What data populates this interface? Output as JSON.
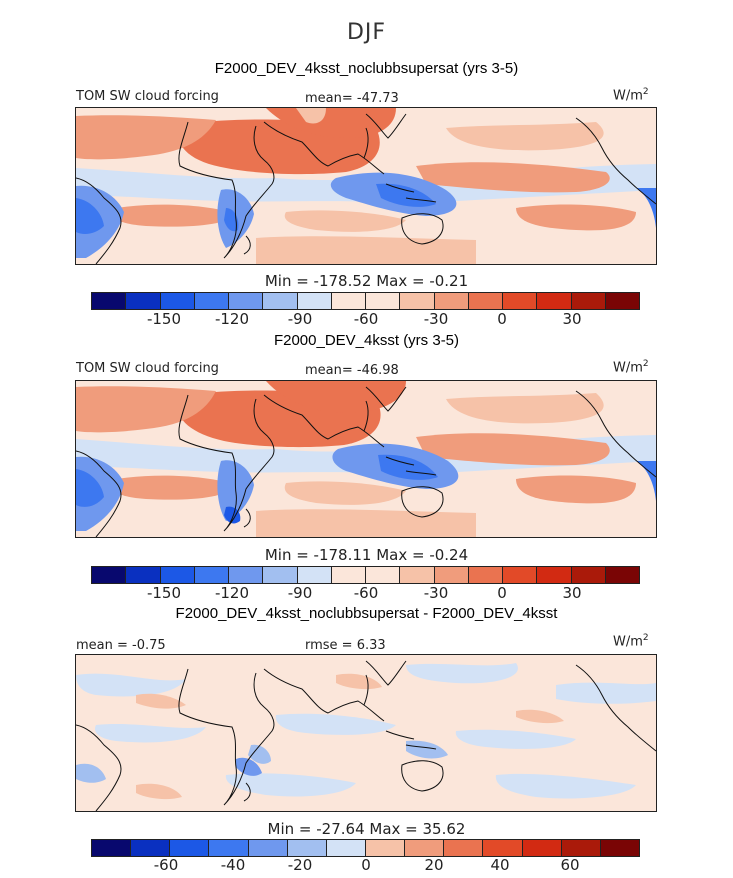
{
  "figure": {
    "season": "DJF"
  },
  "colors": [
    "#08086e",
    "#0a30c0",
    "#1c58e6",
    "#3d78f0",
    "#6f98ee",
    "#a2bff0",
    "#d3e2f6",
    "#fbe6da",
    "#f6c2a8",
    "#f09c7c",
    "#ea7350",
    "#e24a28",
    "#d22a12",
    "#aa1a0a",
    "#7a0505"
  ],
  "chart_data": [
    {
      "type": "heatmap",
      "title": "F2000_DEV_4ksst_noclubbsupersat (yrs 3-5)",
      "left_label": "TOM SW cloud forcing",
      "center_label": "mean= -47.73",
      "units_base": "W/m",
      "units_exp": "2",
      "min_max": "Min = -178.52 Max =  -0.21",
      "colorbar_ticks": [
        "-150",
        "-120",
        "-90",
        "-60",
        "-30",
        "0",
        "30"
      ],
      "colorbar_levels": [
        -180,
        -165,
        -150,
        -135,
        -120,
        -105,
        -90,
        -75,
        -60,
        -45,
        -30,
        -15,
        0,
        15,
        30,
        45
      ]
    },
    {
      "type": "heatmap",
      "title": "F2000_DEV_4ksst (yrs 3-5)",
      "left_label": "TOM SW cloud forcing",
      "center_label": "mean= -46.98",
      "units_base": "W/m",
      "units_exp": "2",
      "min_max": "Min = -178.11 Max =  -0.24",
      "colorbar_ticks": [
        "-150",
        "-120",
        "-90",
        "-60",
        "-30",
        "0",
        "30"
      ],
      "colorbar_levels": [
        -180,
        -165,
        -150,
        -135,
        -120,
        -105,
        -90,
        -75,
        -60,
        -45,
        -30,
        -15,
        0,
        15,
        30,
        45
      ]
    },
    {
      "type": "heatmap",
      "title": "F2000_DEV_4ksst_noclubbsupersat - F2000_DEV_4ksst",
      "left_label": "mean =   -0.75",
      "center_label": "rmse =   6.33",
      "units_base": "W/m",
      "units_exp": "2",
      "min_max": "Min = -27.64 Max =  35.62",
      "colorbar_ticks": [
        "-60",
        "-40",
        "-20",
        "0",
        "20",
        "40",
        "60"
      ],
      "colorbar_levels": [
        -70,
        -60,
        -50,
        -40,
        -30,
        -20,
        -10,
        0,
        10,
        20,
        30,
        40,
        50,
        60,
        70
      ]
    }
  ]
}
